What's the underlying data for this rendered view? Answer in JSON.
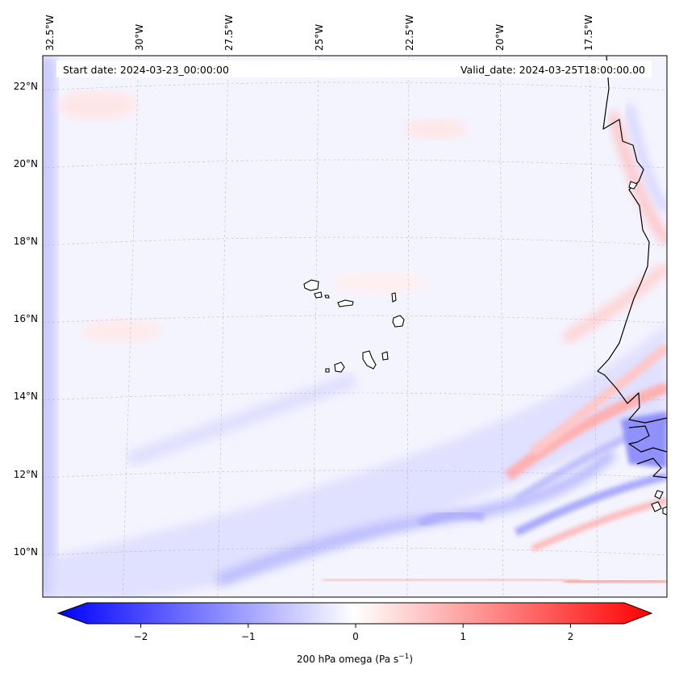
{
  "map": {
    "start_date": "Start date: 2024-03-23_00:00:00",
    "valid_date": "Valid_date: 2024-03-25T18:00:00.00",
    "lon_labels": [
      "32.5°W",
      "30°W",
      "27.5°W",
      "25°W",
      "22.5°W",
      "20°W",
      "17.5°W"
    ],
    "lat_labels": [
      "22°N",
      "20°N",
      "18°N",
      "16°N",
      "14°N",
      "12°N",
      "10°N"
    ]
  },
  "colorbar": {
    "label": "200 hPa omega (Pa s",
    "label_exp": "−1",
    "label_close": ")",
    "ticks": [
      "−2",
      "−1",
      "0",
      "1",
      "2"
    ],
    "min": -2.75,
    "max": 2.75,
    "colors": {
      "negative": "#0000ff",
      "zero": "#ffffff",
      "positive": "#ff0000"
    }
  }
}
